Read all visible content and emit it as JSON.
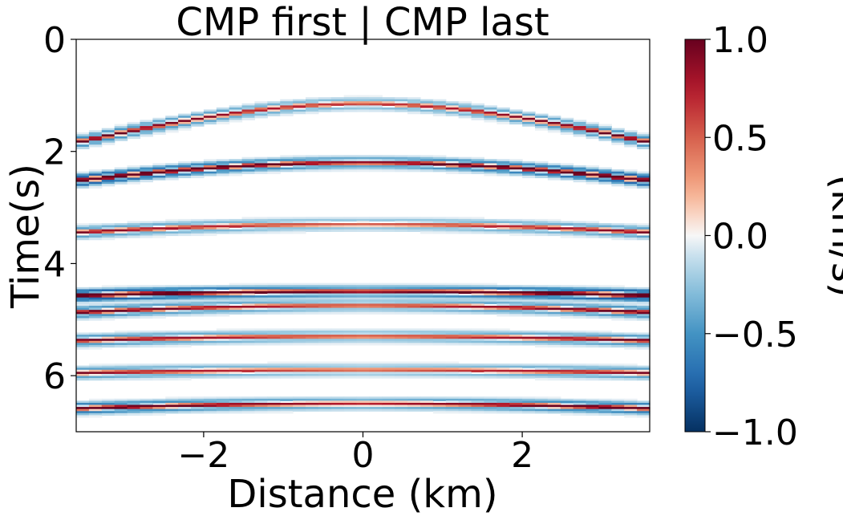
{
  "chart_data": {
    "type": "heatmap",
    "title": "CMP first | CMP last",
    "xlabel": "Distance (km)",
    "ylabel": "Time(s)",
    "xlim": [
      -3.6,
      3.6
    ],
    "ylim": [
      7.0,
      0.0
    ],
    "x_ticks": [
      -2,
      0,
      2
    ],
    "x_tick_labels": [
      "−2",
      "0",
      "2"
    ],
    "y_ticks": [
      0,
      2,
      4,
      6
    ],
    "y_tick_labels": [
      "0",
      "2",
      "4",
      "6"
    ],
    "colorbar": {
      "label": "(km/s)",
      "colormap": "RdBu_r",
      "vmin": -1.0,
      "vmax": 1.0,
      "ticks": [
        1.0,
        0.5,
        0.0,
        -0.5,
        -1.0
      ],
      "tick_labels": [
        "1.0",
        "0.5",
        "0.0",
        "−0.5",
        "−1.0"
      ]
    },
    "events": [
      {
        "t0": 1.15,
        "velocity": 2.5,
        "strength": 0.6
      },
      {
        "t0": 2.2,
        "velocity": 2.9,
        "strength": 0.9
      },
      {
        "t0": 3.3,
        "velocity": 3.6,
        "strength": 0.5
      },
      {
        "t0": 4.5,
        "velocity": 4.5,
        "strength": 0.95
      },
      {
        "t0": 4.75,
        "velocity": 3.3,
        "strength": 0.6
      },
      {
        "t0": 5.3,
        "velocity": 4.0,
        "strength": 0.55
      },
      {
        "t0": 5.9,
        "velocity": 4.5,
        "strength": 0.5
      },
      {
        "t0": 6.5,
        "velocity": 3.4,
        "strength": 0.7
      }
    ],
    "grid": false
  }
}
